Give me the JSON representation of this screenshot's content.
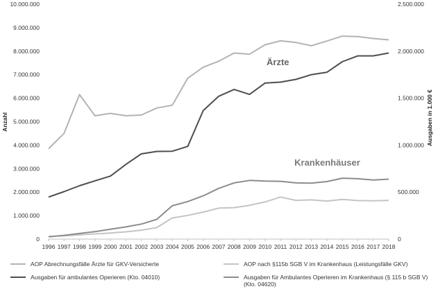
{
  "chart_data": {
    "type": "line",
    "x": [
      "1996",
      "1997",
      "1998",
      "1999",
      "2000",
      "2001",
      "2002",
      "2003",
      "2004",
      "2005",
      "2006",
      "2007",
      "2008",
      "2009",
      "2010",
      "2011",
      "2012",
      "2013",
      "2014",
      "2015",
      "2016",
      "2017",
      "2018"
    ],
    "left_axis": {
      "label": "Anzahl",
      "ylim": [
        0,
        10000000
      ],
      "ticks": [
        "0",
        "1.000.000",
        "2.000.000",
        "3.000.000",
        "4.000.000",
        "5.000.000",
        "6.000.000",
        "7.000.000",
        "8.000.000",
        "9.000.000",
        "10.000.000"
      ]
    },
    "right_axis": {
      "label": "Ausgaben in 1.000 €",
      "ylim": [
        0,
        2500000
      ],
      "ticks": [
        "0",
        "500.000",
        "1.000.000",
        "1.500.000",
        "2.000.000",
        "2.500.000"
      ]
    },
    "series": [
      {
        "name": "AOP Abrechnungsfälle Ärzte für GKV-Versicherte",
        "axis": "left",
        "color": "#b3b3b3",
        "values": [
          3850000,
          4500000,
          6150000,
          5250000,
          5350000,
          5250000,
          5280000,
          5580000,
          5700000,
          6850000,
          7320000,
          7570000,
          7920000,
          7870000,
          8270000,
          8440000,
          8370000,
          8230000,
          8430000,
          8640000,
          8620000,
          8540000,
          8480000
        ]
      },
      {
        "name": "AOP nach §115b SGB V im Krankenhaus (Leistungsfälle GKV)",
        "axis": "left",
        "color": "#c4c4c4",
        "values": [
          110000,
          140000,
          180000,
          220000,
          260000,
          310000,
          380000,
          490000,
          900000,
          1010000,
          1150000,
          1320000,
          1340000,
          1440000,
          1580000,
          1790000,
          1650000,
          1670000,
          1620000,
          1690000,
          1640000,
          1630000,
          1650000
        ]
      },
      {
        "name": "Ausgaben für ambulantes Operieren (Kto. 04010)",
        "axis": "right",
        "color": "#4d4d4d",
        "values": [
          448000,
          505000,
          568000,
          620000,
          670000,
          795000,
          907000,
          933000,
          935000,
          987000,
          1367000,
          1520000,
          1592000,
          1540000,
          1660000,
          1670000,
          1700000,
          1750000,
          1775000,
          1888000,
          1950000,
          1950000,
          1980000
        ]
      },
      {
        "name": "Ausgaben für Ambulantes Operieren im Krankenhaus (§ 115 b SGB V) (Kto. 04620)",
        "axis": "right",
        "color": "#8c8c8c",
        "values": [
          25000,
          40000,
          60000,
          80000,
          105000,
          130000,
          160000,
          210000,
          355000,
          400000,
          460000,
          540000,
          598000,
          625000,
          618000,
          615000,
          598000,
          595000,
          612000,
          648000,
          642000,
          628000,
          638000
        ]
      }
    ],
    "annotations": [
      {
        "text": "Ärzte",
        "x": "2010.1",
        "y_left": 7400000,
        "color": "#666666"
      },
      {
        "text": "Krankenhäuser",
        "x": "2011.9",
        "y_left": 3120000,
        "color": "#7a7a7a"
      }
    ],
    "grid": false,
    "legend": "bottom"
  }
}
